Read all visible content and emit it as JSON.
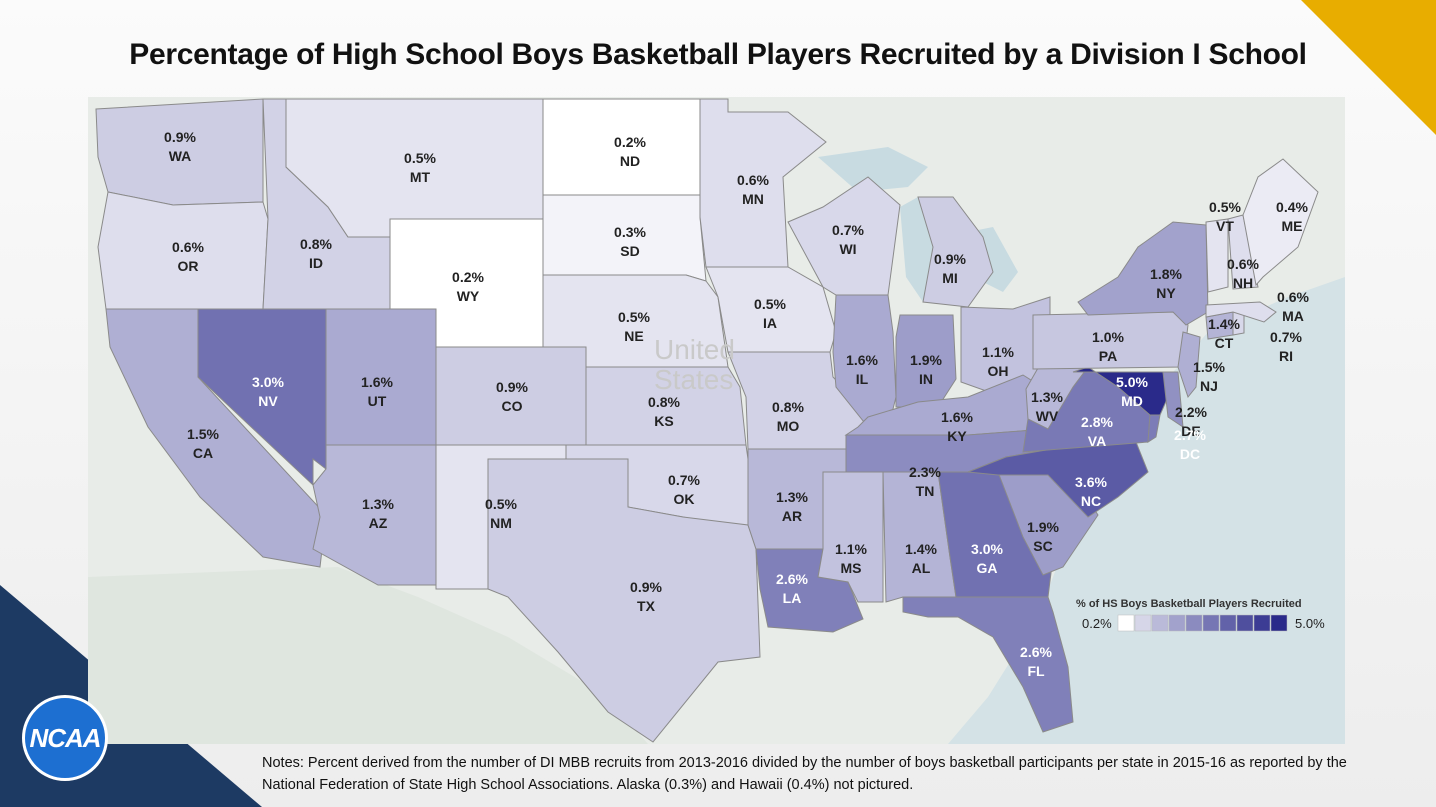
{
  "title": "Percentage of High School Boys Basketball Players Recruited by a Division I School",
  "notes": "Notes: Percent derived from the number of DI MBB recruits from 2013-2016 divided by the number of boys basketball participants per state in 2015-16 as reported by the National Federation of State High School Associations. Alaska (0.3%) and Hawaii (0.4%) not pictured.",
  "logo_text": "NCAA",
  "map_watermark": [
    "United",
    "States"
  ],
  "colors": {
    "accent_gold": "#e8ad00",
    "accent_navy": "#1d3a63",
    "logo_blue": "#1d6fd1",
    "scale_low": "#ffffff",
    "scale_high": "#2a2a8a"
  },
  "legend": {
    "title": "% of HS Boys Basketball Players Recruited",
    "min_label": "0.2%",
    "max_label": "5.0%",
    "min": 0.2,
    "max": 5.0,
    "steps": 10
  },
  "chart_data": {
    "type": "choropleth",
    "title": "Percentage of High School Boys Basketball Players Recruited by a Division I School",
    "value_label": "% of HS Boys Basketball Players Recruited",
    "range": [
      0.2,
      5.0
    ],
    "states": [
      {
        "code": "WA",
        "value": 0.9,
        "label": "0.9%"
      },
      {
        "code": "OR",
        "value": 0.6,
        "label": "0.6%"
      },
      {
        "code": "CA",
        "value": 1.5,
        "label": "1.5%"
      },
      {
        "code": "NV",
        "value": 3.0,
        "label": "3.0%"
      },
      {
        "code": "ID",
        "value": 0.8,
        "label": "0.8%"
      },
      {
        "code": "MT",
        "value": 0.5,
        "label": "0.5%"
      },
      {
        "code": "WY",
        "value": 0.2,
        "label": "0.2%"
      },
      {
        "code": "UT",
        "value": 1.6,
        "label": "1.6%"
      },
      {
        "code": "AZ",
        "value": 1.3,
        "label": "1.3%"
      },
      {
        "code": "CO",
        "value": 0.9,
        "label": "0.9%"
      },
      {
        "code": "NM",
        "value": 0.5,
        "label": "0.5%"
      },
      {
        "code": "ND",
        "value": 0.2,
        "label": "0.2%"
      },
      {
        "code": "SD",
        "value": 0.3,
        "label": "0.3%"
      },
      {
        "code": "NE",
        "value": 0.5,
        "label": "0.5%"
      },
      {
        "code": "KS",
        "value": 0.8,
        "label": "0.8%"
      },
      {
        "code": "OK",
        "value": 0.7,
        "label": "0.7%"
      },
      {
        "code": "TX",
        "value": 0.9,
        "label": "0.9%"
      },
      {
        "code": "MN",
        "value": 0.6,
        "label": "0.6%"
      },
      {
        "code": "IA",
        "value": 0.5,
        "label": "0.5%"
      },
      {
        "code": "MO",
        "value": 0.8,
        "label": "0.8%"
      },
      {
        "code": "AR",
        "value": 1.3,
        "label": "1.3%"
      },
      {
        "code": "LA",
        "value": 2.6,
        "label": "2.6%"
      },
      {
        "code": "WI",
        "value": 0.7,
        "label": "0.7%"
      },
      {
        "code": "IL",
        "value": 1.6,
        "label": "1.6%"
      },
      {
        "code": "MI",
        "value": 0.9,
        "label": "0.9%"
      },
      {
        "code": "IN",
        "value": 1.9,
        "label": "1.9%"
      },
      {
        "code": "OH",
        "value": 1.1,
        "label": "1.1%"
      },
      {
        "code": "KY",
        "value": 1.6,
        "label": "1.6%"
      },
      {
        "code": "TN",
        "value": 2.3,
        "label": "2.3%"
      },
      {
        "code": "MS",
        "value": 1.1,
        "label": "1.1%"
      },
      {
        "code": "AL",
        "value": 1.4,
        "label": "1.4%"
      },
      {
        "code": "GA",
        "value": 3.0,
        "label": "3.0%"
      },
      {
        "code": "FL",
        "value": 2.6,
        "label": "2.6%"
      },
      {
        "code": "SC",
        "value": 1.9,
        "label": "1.9%"
      },
      {
        "code": "NC",
        "value": 3.6,
        "label": "3.6%"
      },
      {
        "code": "VA",
        "value": 2.8,
        "label": "2.8%"
      },
      {
        "code": "WV",
        "value": 1.3,
        "label": "1.3%"
      },
      {
        "code": "MD",
        "value": 5.0,
        "label": "5.0%"
      },
      {
        "code": "DE",
        "value": 2.2,
        "label": "2.2%"
      },
      {
        "code": "DC",
        "value": 2.7,
        "label": "2.7%"
      },
      {
        "code": "PA",
        "value": 1.0,
        "label": "1.0%"
      },
      {
        "code": "NJ",
        "value": 1.5,
        "label": "1.5%"
      },
      {
        "code": "NY",
        "value": 1.8,
        "label": "1.8%"
      },
      {
        "code": "CT",
        "value": 1.4,
        "label": "1.4%"
      },
      {
        "code": "RI",
        "value": 0.7,
        "label": "0.7%"
      },
      {
        "code": "MA",
        "value": 0.6,
        "label": "0.6%"
      },
      {
        "code": "VT",
        "value": 0.5,
        "label": "0.5%"
      },
      {
        "code": "NH",
        "value": 0.6,
        "label": "0.6%"
      },
      {
        "code": "ME",
        "value": 0.4,
        "label": "0.4%"
      }
    ]
  }
}
